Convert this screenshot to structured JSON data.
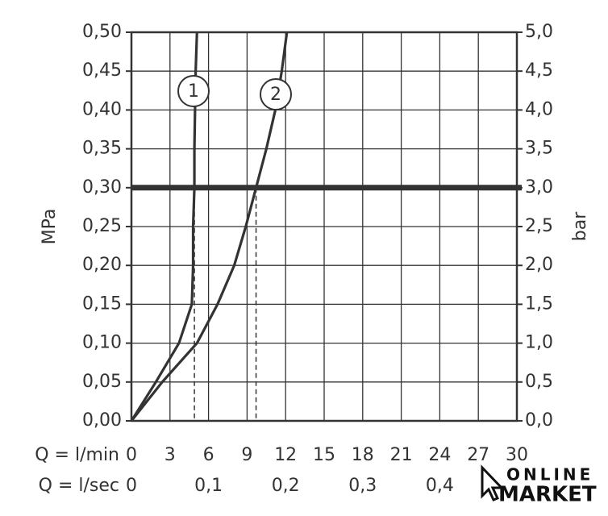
{
  "chart_data": {
    "type": "line",
    "x_title": "Q = l/min",
    "x2_title": "Q = l/sec",
    "y_title": "MPa",
    "y2_title": "bar",
    "xlim": [
      0,
      30
    ],
    "xticks": [
      0,
      3,
      6,
      9,
      12,
      15,
      18,
      21,
      24,
      27,
      30
    ],
    "x2lim": [
      0,
      0.5
    ],
    "x2ticks": [
      0,
      {
        "value": 0.1,
        "label": "0,1"
      },
      {
        "value": 0.2,
        "label": "0,2"
      },
      {
        "value": 0.3,
        "label": "0,3"
      },
      {
        "value": 0.4,
        "label": "0,4"
      }
    ],
    "ylim": [
      0,
      0.5
    ],
    "yticks": [
      {
        "value": 0,
        "label": "0,00"
      },
      {
        "value": 0.05,
        "label": "0,05"
      },
      {
        "value": 0.1,
        "label": "0,10"
      },
      {
        "value": 0.15,
        "label": "0,15"
      },
      {
        "value": 0.2,
        "label": "0,20"
      },
      {
        "value": 0.25,
        "label": "0,25"
      },
      {
        "value": 0.3,
        "label": "0,30"
      },
      {
        "value": 0.35,
        "label": "0,35"
      },
      {
        "value": 0.4,
        "label": "0,40"
      },
      {
        "value": 0.45,
        "label": "0,45"
      },
      {
        "value": 0.5,
        "label": "0,50"
      }
    ],
    "y2lim": [
      0,
      5
    ],
    "y2ticks": [
      {
        "value": 0,
        "label": "0,0"
      },
      {
        "value": 0.5,
        "label": "0,5"
      },
      {
        "value": 1,
        "label": "1,0"
      },
      {
        "value": 1.5,
        "label": "1,5"
      },
      {
        "value": 2,
        "label": "2,0"
      },
      {
        "value": 2.5,
        "label": "2,5"
      },
      {
        "value": 3,
        "label": "3,0"
      },
      {
        "value": 3.5,
        "label": "3,5"
      },
      {
        "value": 4,
        "label": "4,0"
      },
      {
        "value": 4.5,
        "label": "4,5"
      },
      {
        "value": 5,
        "label": "5,0"
      }
    ],
    "grid": true,
    "color": "#333333",
    "reference_line": 0.3,
    "markers": [
      4.9,
      9.7
    ],
    "series": [
      {
        "name": "1",
        "x": [
          0,
          1.9,
          3.7,
          4.7,
          4.8,
          4.8,
          4.9,
          4.9,
          4.95,
          5.0,
          5.1
        ],
        "values": [
          0,
          0.05,
          0.1,
          0.15,
          0.2,
          0.25,
          0.3,
          0.35,
          0.4,
          0.45,
          0.5
        ]
      },
      {
        "name": "2",
        "x": [
          0,
          2.4,
          5.1,
          6.7,
          8.0,
          8.9,
          9.7,
          10.5,
          11.2,
          11.7,
          12.1
        ],
        "values": [
          0,
          0.05,
          0.1,
          0.15,
          0.2,
          0.25,
          0.3,
          0.35,
          0.4,
          0.45,
          0.5
        ]
      }
    ]
  },
  "watermark": {
    "line1": "ONLINE",
    "line2": "MARKET"
  }
}
